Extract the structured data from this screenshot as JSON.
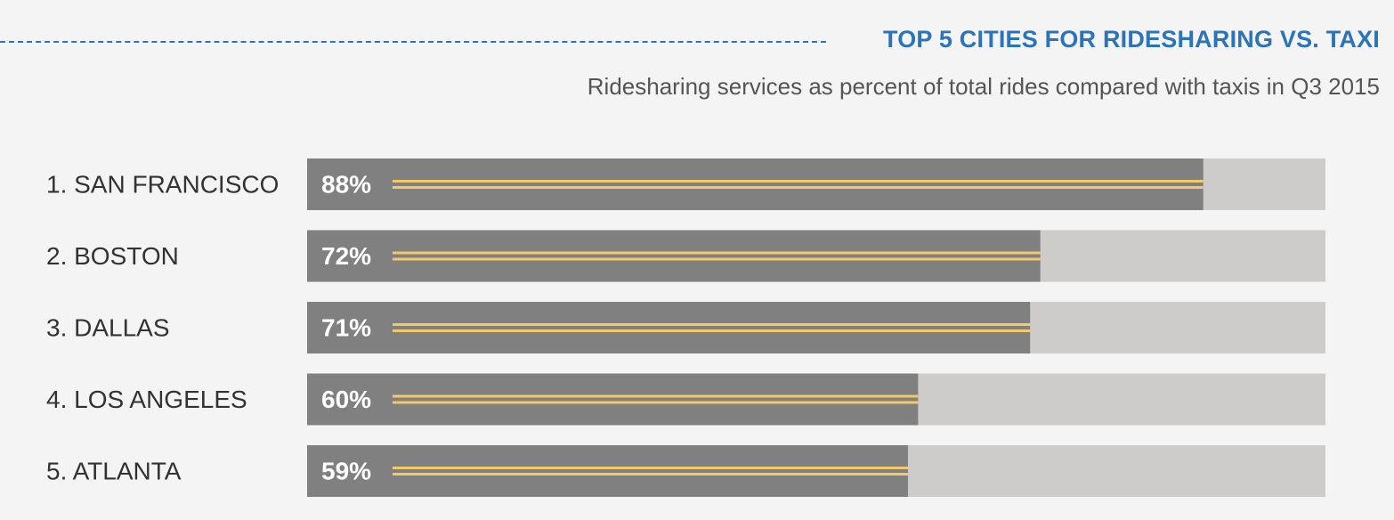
{
  "header": {
    "title": "TOP 5 CITIES FOR RIDESHARING VS. TAXI",
    "subtitle": "Ridesharing services as percent of total rides compared with taxis in Q3 2015"
  },
  "colors": {
    "accent": "#2b74b9",
    "bar_fill": "#808080",
    "bar_track": "#cdccca",
    "lane_lines": "#f3c96a",
    "background": "#f4f4f4"
  },
  "chart_data": {
    "type": "bar",
    "orientation": "horizontal",
    "title": "TOP 5 CITIES FOR RIDESHARING VS. TAXI",
    "subtitle": "Ridesharing services as percent of total rides compared with taxis in Q3 2015",
    "categories": [
      "1. SAN FRANCISCO",
      "2. BOSTON",
      "3. DALLAS",
      "4. LOS ANGELES",
      "5. ATLANTA"
    ],
    "values": [
      88,
      72,
      71,
      60,
      59
    ],
    "value_labels": [
      "88%",
      "72%",
      "71%",
      "60%",
      "59%"
    ],
    "xlim": [
      0,
      100
    ],
    "xlabel": "",
    "ylabel": "",
    "grid": false,
    "legend": "none"
  }
}
